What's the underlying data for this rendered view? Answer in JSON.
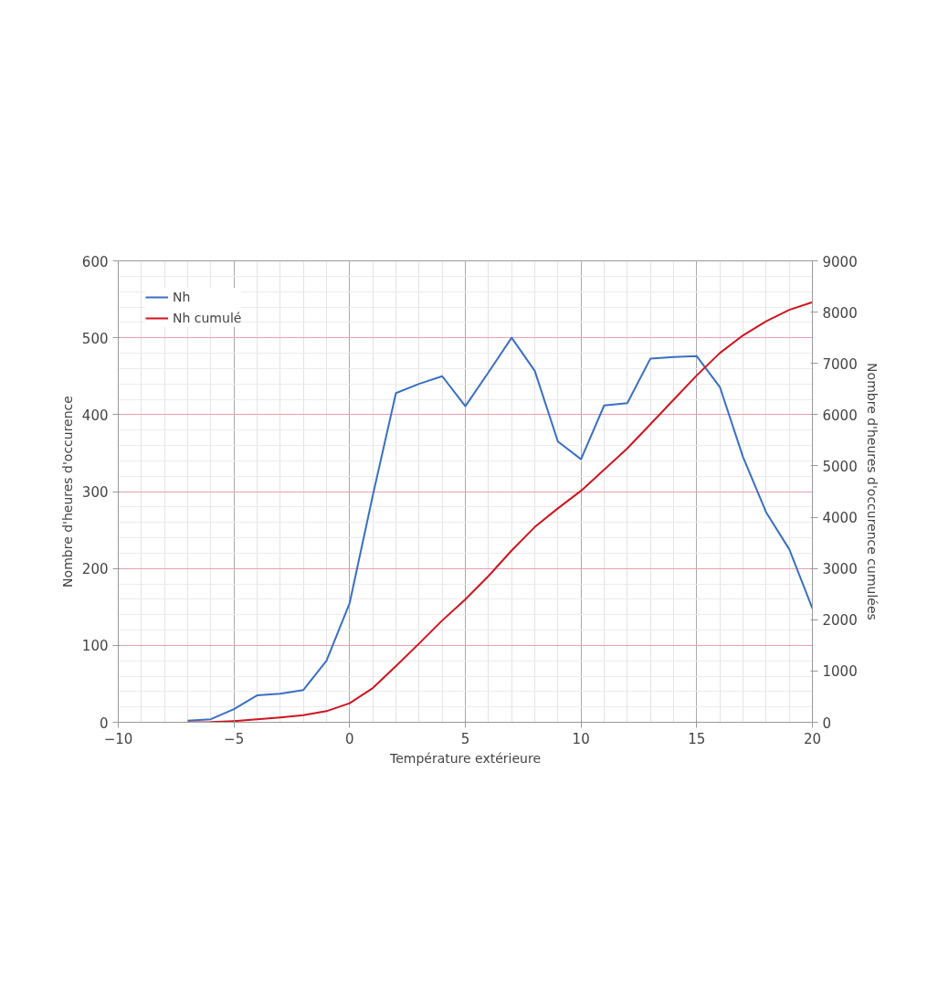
{
  "chart_data": {
    "type": "line",
    "xlabel": "Température extérieure",
    "ylabel": "Nombre d'heures d'occurence",
    "y2label": "Nombre d'heures d'occurence cumulées",
    "x": [
      -7,
      -6,
      -5,
      -4,
      -3,
      -2,
      -1,
      0,
      1,
      2,
      3,
      4,
      5,
      6,
      7,
      8,
      9,
      10,
      11,
      12,
      13,
      14,
      15,
      16,
      17,
      18,
      19,
      20
    ],
    "series": [
      {
        "name": "Nh",
        "color": "#3a6fc4",
        "values": [
          2,
          4,
          17,
          35,
          37,
          42,
          80,
          155,
          295,
          428,
          440,
          450,
          411,
          455,
          500,
          457,
          365,
          342,
          412,
          415,
          473,
          475,
          476,
          436,
          345,
          273,
          225,
          148
        ]
      },
      {
        "name": "Nh cumulé",
        "color": "#d0141e",
        "axis": "y2",
        "values": [
          2,
          6,
          23,
          58,
          95,
          137,
          217,
          372,
          667,
          1095,
          1535,
          1985,
          2396,
          2851,
          3351,
          3808,
          4173,
          4515,
          4927,
          5342,
          5815,
          6290,
          6766,
          7202,
          7547,
          7820,
          8045,
          8193
        ]
      }
    ],
    "xlim": [
      -10,
      20
    ],
    "xticks": [
      -10,
      -5,
      0,
      5,
      10,
      15,
      20
    ],
    "ylim": [
      0,
      600
    ],
    "yticks": [
      0,
      100,
      200,
      300,
      400,
      500,
      600
    ],
    "y2lim": [
      0,
      9000
    ],
    "y2ticks": [
      0,
      1000,
      2000,
      3000,
      4000,
      5000,
      6000,
      7000,
      8000,
      9000
    ],
    "grid": true,
    "legend": "top left",
    "marker": "none",
    "line_style": "solid"
  }
}
